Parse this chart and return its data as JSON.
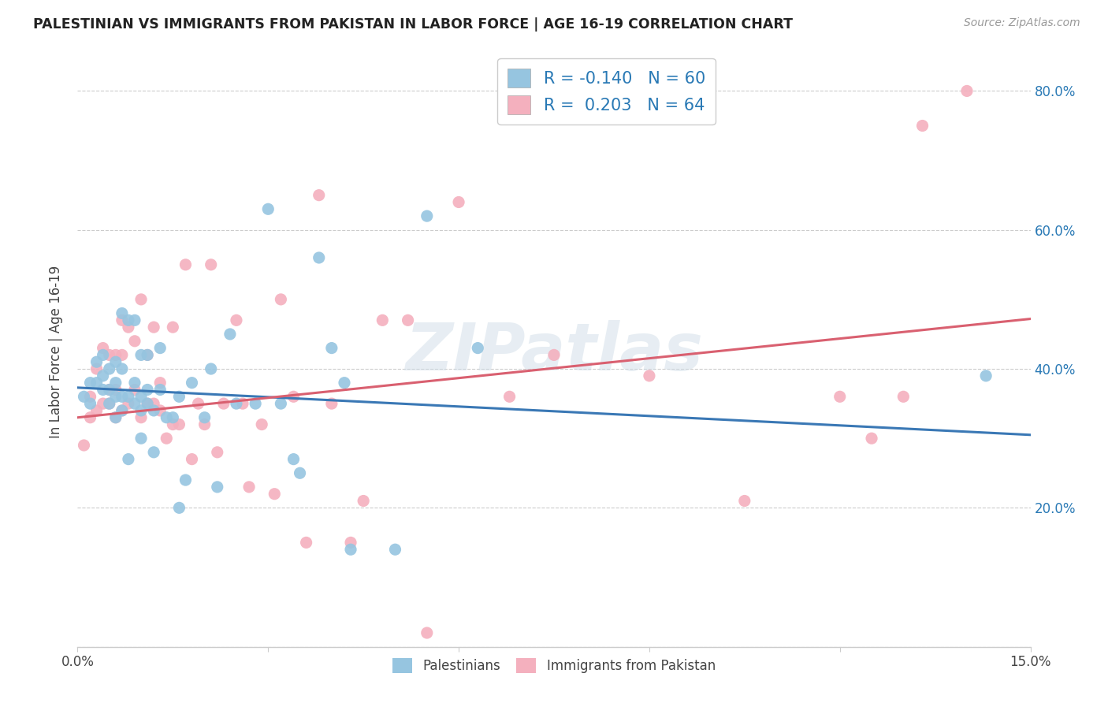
{
  "title": "PALESTINIAN VS IMMIGRANTS FROM PAKISTAN IN LABOR FORCE | AGE 16-19 CORRELATION CHART",
  "source": "Source: ZipAtlas.com",
  "ylabel": "In Labor Force | Age 16-19",
  "xlim": [
    0.0,
    0.15
  ],
  "ylim": [
    0.0,
    0.85
  ],
  "blue_R": -0.14,
  "blue_N": 60,
  "pink_R": 0.203,
  "pink_N": 64,
  "blue_color": "#96c5e0",
  "pink_color": "#f4b0be",
  "blue_line_color": "#3a78b5",
  "pink_line_color": "#d96070",
  "watermark": "ZIPatlas",
  "legend_label_blue": "Palestinians",
  "legend_label_pink": "Immigrants from Pakistan",
  "blue_line_x0": 0.0,
  "blue_line_y0": 0.373,
  "blue_line_x1": 0.15,
  "blue_line_y1": 0.305,
  "pink_line_x0": 0.0,
  "pink_line_y0": 0.33,
  "pink_line_x1": 0.15,
  "pink_line_y1": 0.472,
  "blue_x": [
    0.001,
    0.002,
    0.002,
    0.003,
    0.003,
    0.004,
    0.004,
    0.004,
    0.005,
    0.005,
    0.005,
    0.006,
    0.006,
    0.006,
    0.006,
    0.007,
    0.007,
    0.007,
    0.007,
    0.008,
    0.008,
    0.008,
    0.009,
    0.009,
    0.009,
    0.01,
    0.01,
    0.01,
    0.01,
    0.011,
    0.011,
    0.011,
    0.012,
    0.012,
    0.013,
    0.013,
    0.014,
    0.015,
    0.016,
    0.016,
    0.017,
    0.018,
    0.02,
    0.021,
    0.022,
    0.024,
    0.025,
    0.028,
    0.03,
    0.032,
    0.034,
    0.035,
    0.038,
    0.04,
    0.042,
    0.043,
    0.05,
    0.055,
    0.063,
    0.143
  ],
  "blue_y": [
    0.36,
    0.38,
    0.35,
    0.38,
    0.41,
    0.37,
    0.39,
    0.42,
    0.35,
    0.37,
    0.4,
    0.33,
    0.36,
    0.38,
    0.41,
    0.34,
    0.36,
    0.4,
    0.48,
    0.27,
    0.36,
    0.47,
    0.35,
    0.38,
    0.47,
    0.3,
    0.34,
    0.36,
    0.42,
    0.35,
    0.37,
    0.42,
    0.28,
    0.34,
    0.37,
    0.43,
    0.33,
    0.33,
    0.2,
    0.36,
    0.24,
    0.38,
    0.33,
    0.4,
    0.23,
    0.45,
    0.35,
    0.35,
    0.63,
    0.35,
    0.27,
    0.25,
    0.56,
    0.43,
    0.38,
    0.14,
    0.14,
    0.62,
    0.43,
    0.39
  ],
  "pink_x": [
    0.001,
    0.002,
    0.002,
    0.003,
    0.003,
    0.004,
    0.004,
    0.005,
    0.005,
    0.005,
    0.006,
    0.006,
    0.006,
    0.007,
    0.007,
    0.007,
    0.008,
    0.008,
    0.009,
    0.009,
    0.01,
    0.01,
    0.011,
    0.011,
    0.012,
    0.012,
    0.013,
    0.013,
    0.014,
    0.015,
    0.015,
    0.016,
    0.017,
    0.018,
    0.019,
    0.02,
    0.021,
    0.022,
    0.023,
    0.025,
    0.026,
    0.027,
    0.029,
    0.031,
    0.032,
    0.034,
    0.036,
    0.038,
    0.04,
    0.043,
    0.045,
    0.048,
    0.052,
    0.055,
    0.06,
    0.068,
    0.075,
    0.09,
    0.105,
    0.12,
    0.125,
    0.13,
    0.133,
    0.14
  ],
  "pink_y": [
    0.29,
    0.33,
    0.36,
    0.34,
    0.4,
    0.35,
    0.43,
    0.35,
    0.37,
    0.42,
    0.33,
    0.37,
    0.42,
    0.34,
    0.42,
    0.47,
    0.35,
    0.46,
    0.37,
    0.44,
    0.33,
    0.5,
    0.35,
    0.42,
    0.35,
    0.46,
    0.34,
    0.38,
    0.3,
    0.32,
    0.46,
    0.32,
    0.55,
    0.27,
    0.35,
    0.32,
    0.55,
    0.28,
    0.35,
    0.47,
    0.35,
    0.23,
    0.32,
    0.22,
    0.5,
    0.36,
    0.15,
    0.65,
    0.35,
    0.15,
    0.21,
    0.47,
    0.47,
    0.02,
    0.64,
    0.36,
    0.42,
    0.39,
    0.21,
    0.36,
    0.3,
    0.36,
    0.75,
    0.8
  ]
}
